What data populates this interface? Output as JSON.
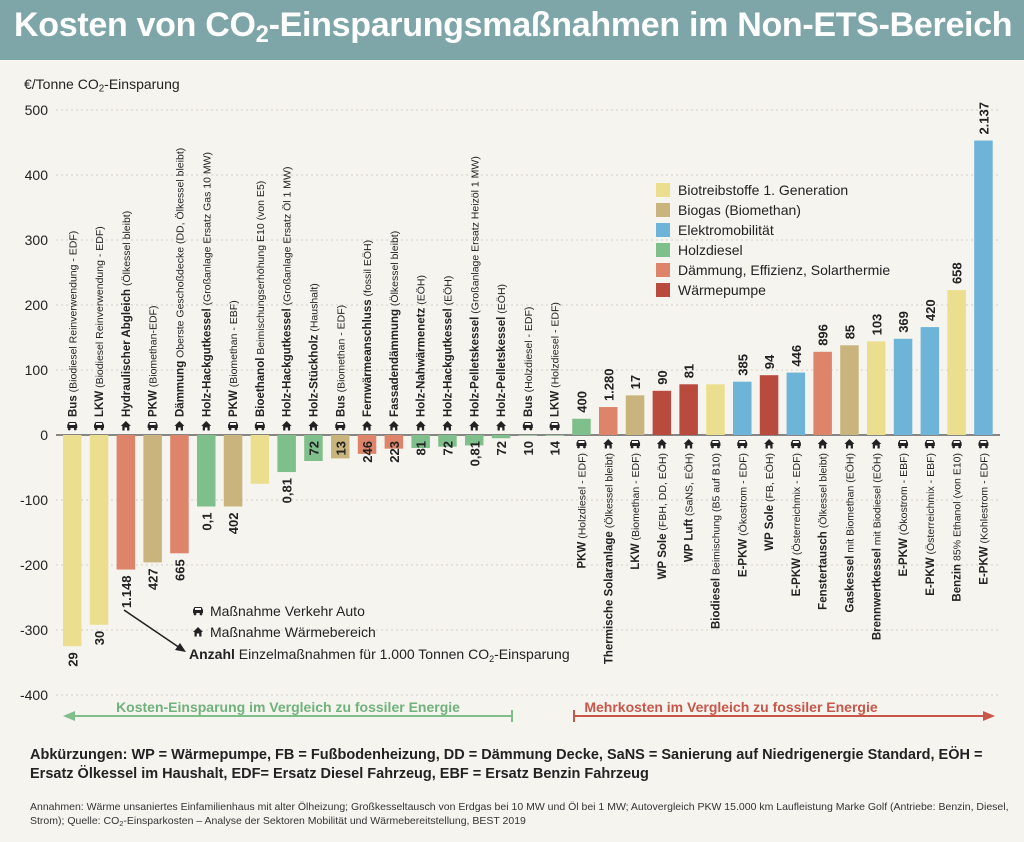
{
  "header": {
    "title_a": "Kosten von CO",
    "title_sub": "2",
    "title_b": "-Einsparungsmaßnahmen im Non-ETS-Bereich"
  },
  "axis_label": {
    "a": "€/Tonne CO",
    "sub": "2",
    "b": "-Einsparung"
  },
  "colors": {
    "Biotreibstoffe 1. Generation": "#ebdf8f",
    "Biogas (Biomethan)": "#c8b47c",
    "Elektromobilität": "#6db4d8",
    "Holzdiesel": "#7fbf8b",
    "Dämmung, Effizienz, Solarthermie": "#dd846a",
    "Wärmepumpe": "#b84a3e",
    "background": "#f6f4ef",
    "title_bar": "#7ea6a8"
  },
  "icon_legend": {
    "car_label": "Maßnahme Verkehr Auto",
    "house_label": "Maßnahme Wärmebereich",
    "count_bold": "Anzahl",
    "count_rest_a": " Einzelmaßnahmen für 1.000 Tonnen CO",
    "count_sub": "2",
    "count_rest_b": "-Einsparung"
  },
  "arrows": {
    "left": "Kosten-Einsparung  im Vergleich zu fossiler Energie",
    "right": "Mehrkosten im Vergleich zu fossiler Energie"
  },
  "abbreviations": "Abkürzungen: WP = Wärmepumpe, FB = Fußbodenheizung, DD = Dämmung Decke, SaNS = Sanierung auf Niedrigenergie Standard, EÖH = Ersatz Ölkessel im Haushalt, EDF= Ersatz Diesel Fahrzeug, EBF = Ersatz Benzin Fahrzeug",
  "notes_a": "Annahmen: Wärme unsaniertes Einfamilienhaus mit alter Ölheizung; Großkesseltausch von Erdgas bei 10 MW und Öl bei 1 MW; Autovergleich PKW 15.000 km Laufleistung Marke Golf (Antriebe: Benzin, Diesel, Strom); Quelle: CO",
  "notes_sub": "2",
  "notes_b": "-Einsparkosten – Analyse der Sektoren Mobilität und Wärmebereitstellung, BEST 2019",
  "chart_data": {
    "type": "bar",
    "ylim": [
      -400,
      500
    ],
    "yticks": [
      -400,
      -300,
      -200,
      -100,
      0,
      100,
      200,
      300,
      400,
      500
    ],
    "legend": [
      "Biotreibstoffe 1. Generation",
      "Biogas (Biomethan)",
      "Elektromobilität",
      "Holzdiesel",
      "Dämmung, Effizienz, Solarthermie",
      "Wärmepumpe"
    ],
    "legend_position": "top-right",
    "bars": [
      {
        "bold": "Bus",
        "rest": " (Biodiesel Reinverwendung - EDF)",
        "value": -325,
        "count": "29",
        "cat": "Biotreibstoffe 1. Generation",
        "icon": "car"
      },
      {
        "bold": "LKW",
        "rest": " (Biodiesel Reinverwendung - EDF)",
        "value": -292,
        "count": "30",
        "cat": "Biotreibstoffe 1. Generation",
        "icon": "car"
      },
      {
        "bold": "Hydraulischer Abgleich",
        "rest": " (Ölkessel bleibt)",
        "value": -207,
        "count": "1.148",
        "cat": "Dämmung, Effizienz, Solarthermie",
        "icon": "house"
      },
      {
        "bold": "PKW",
        "rest": " (Biomethan-EDF)",
        "value": -196,
        "count": "427",
        "cat": "Biogas (Biomethan)",
        "icon": "car"
      },
      {
        "bold": "Dämmung",
        "rest": " Oberste Geschoßdecke (DD, Ölkessel bleibt)",
        "value": -182,
        "count": "665",
        "cat": "Dämmung, Effizienz, Solarthermie",
        "icon": "house"
      },
      {
        "bold": "Holz-Hackgutkessel",
        "rest": " (Großanlage Ersatz Gas 10 MW)",
        "value": -110,
        "count": "0,1",
        "cat": "Holzdiesel",
        "icon": "house"
      },
      {
        "bold": "PKW",
        "rest": " (Biomethan - EBF)",
        "value": -110,
        "count": "402",
        "cat": "Biogas (Biomethan)",
        "icon": "car"
      },
      {
        "bold": "Bioethanol",
        "rest": " Beimischungserhöhung E10 (von E5)",
        "value": -75,
        "count": "",
        "cat": "Biotreibstoffe 1. Generation",
        "icon": "car"
      },
      {
        "bold": "Holz-Hackgutkessel",
        "rest": " (Großanlage Ersatz Öl 1 MW)",
        "value": -57,
        "count": "0,81",
        "cat": "Holzdiesel",
        "icon": "house"
      },
      {
        "bold": "Holz-Stückholz",
        "rest": " (Haushalt)",
        "value": -40,
        "count": "72",
        "cat": "Holzdiesel",
        "icon": "house"
      },
      {
        "bold": "Bus",
        "rest": " (Biomethan - EDF)",
        "value": -36,
        "count": "13",
        "cat": "Biogas (Biomethan)",
        "icon": "car"
      },
      {
        "bold": "Fernwärmeanschluss",
        "rest": " (fossil EÖH)",
        "value": -29,
        "count": "246",
        "cat": "Dämmung, Effizienz, Solarthermie",
        "icon": "house"
      },
      {
        "bold": "Fassadendämmung",
        "rest": " (Ölkessel bleibt)",
        "value": -21,
        "count": "223",
        "cat": "Dämmung, Effizienz, Solarthermie",
        "icon": "house"
      },
      {
        "bold": "Holz-Nahwärmenetz",
        "rest": " (EÖH)",
        "value": -20,
        "count": "81",
        "cat": "Holzdiesel",
        "icon": "house"
      },
      {
        "bold": "Holz-Hackgutkessel",
        "rest": " (EÖH)",
        "value": -18,
        "count": "72",
        "cat": "Holzdiesel",
        "icon": "house"
      },
      {
        "bold": "Holz-Pelletskessel",
        "rest": " (Großanlage Ersatz Heizöl 1 MW)",
        "value": -16,
        "count": "0,81",
        "cat": "Holzdiesel",
        "icon": "house"
      },
      {
        "bold": "Holz-Pelletskessel",
        "rest": " (EÖH)",
        "value": -5,
        "count": "72",
        "cat": "Holzdiesel",
        "icon": "house"
      },
      {
        "bold": "Bus",
        "rest": " (Holzdiesel - EDF)",
        "value": 0,
        "count": "10",
        "cat": "Holzdiesel",
        "icon": "car"
      },
      {
        "bold": "LKW",
        "rest": " (Holzdiesel - EDF)",
        "value": 0,
        "count": "14",
        "cat": "Holzdiesel",
        "icon": "car"
      },
      {
        "bold": "PKW",
        "rest": " (Holzdiesel - EDF)",
        "value": 25,
        "count": "400",
        "cat": "Holzdiesel",
        "icon": "car"
      },
      {
        "bold": "Thermische Solaranlage",
        "rest": " (Ölkessel bleibt)",
        "value": 43,
        "count": "1.280",
        "cat": "Dämmung, Effizienz, Solarthermie",
        "icon": "house"
      },
      {
        "bold": "LKW",
        "rest": " (Biomethan - EDF)",
        "value": 61,
        "count": "17",
        "cat": "Biogas (Biomethan)",
        "icon": "car"
      },
      {
        "bold": "WP Sole",
        "rest": " (FBH, DD, EÖH)",
        "value": 68,
        "count": "90",
        "cat": "Wärmepumpe",
        "icon": "house"
      },
      {
        "bold": "WP Luft",
        "rest": " (SaNS, EÖH)",
        "value": 78,
        "count": "81",
        "cat": "Wärmepumpe",
        "icon": "house"
      },
      {
        "bold": "Biodiesel",
        "rest": " Beimischung (B5 auf B10)",
        "value": 78,
        "count": "",
        "cat": "Biotreibstoffe 1. Generation",
        "icon": "car"
      },
      {
        "bold": "E-PKW",
        "rest": " (Ökostrom - EDF)",
        "value": 82,
        "count": "385",
        "cat": "Elektromobilität",
        "icon": "car"
      },
      {
        "bold": "WP Sole",
        "rest": " (FB, EÖH)",
        "value": 92,
        "count": "94",
        "cat": "Wärmepumpe",
        "icon": "house"
      },
      {
        "bold": "E-PKW",
        "rest": " (Österreichmix - EDF)",
        "value": 96,
        "count": "446",
        "cat": "Elektromobilität",
        "icon": "car"
      },
      {
        "bold": "Fenstertausch",
        "rest": " (Ölkessel bleibt)",
        "value": 128,
        "count": "896",
        "cat": "Dämmung, Effizienz, Solarthermie",
        "icon": "house"
      },
      {
        "bold": "Gaskessel",
        "rest": " mit Biomethan (EÖH)",
        "value": 138,
        "count": "85",
        "cat": "Biogas (Biomethan)",
        "icon": "house"
      },
      {
        "bold": "Brennwertkessel",
        "rest": " mit Biodiesel (EÖH)",
        "value": 144,
        "count": "103",
        "cat": "Biotreibstoffe 1. Generation",
        "icon": "house"
      },
      {
        "bold": "E-PKW",
        "rest": " (Ökostrom - EBF)",
        "value": 148,
        "count": "369",
        "cat": "Elektromobilität",
        "icon": "car"
      },
      {
        "bold": "E-PKW",
        "rest": " (Österreichmix - EBF)",
        "value": 166,
        "count": "420",
        "cat": "Elektromobilität",
        "icon": "car"
      },
      {
        "bold": "Benzin",
        "rest": " 85% Ethanol (von E10)",
        "value": 223,
        "count": "658",
        "cat": "Biotreibstoffe 1. Generation",
        "icon": "car"
      },
      {
        "bold": "E-PKW",
        "rest": " (Kohlestrom - EDF)",
        "value": 453,
        "count": "2.137",
        "cat": "Elektromobilität",
        "icon": "car"
      }
    ]
  }
}
